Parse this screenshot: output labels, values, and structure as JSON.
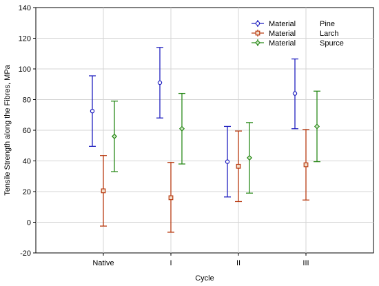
{
  "chart_data": {
    "type": "errorbar",
    "xlabel": "Cycle",
    "ylabel": "Tensile Strength along the Fibres, MPa",
    "categories": [
      "Native",
      "I",
      "II",
      "III"
    ],
    "ylim": [
      -20,
      140
    ],
    "yticks": [
      -20,
      0,
      20,
      40,
      60,
      80,
      100,
      120,
      140
    ],
    "grid": true,
    "legend_position": "top-right",
    "series": [
      {
        "legend_prefix": "Material",
        "name": "Pine",
        "color": "#1f1fbf",
        "marker": "circle",
        "mean": [
          72.5,
          91,
          39.5,
          84
        ],
        "lower": [
          49.5,
          68,
          16.5,
          61
        ],
        "upper": [
          95.5,
          114,
          62.5,
          106.5
        ]
      },
      {
        "legend_prefix": "Material",
        "name": "Larch",
        "color": "#b83a10",
        "marker": "square",
        "mean": [
          20.5,
          16,
          36.5,
          37.5
        ],
        "lower": [
          -2.5,
          -6.5,
          13.5,
          14.5
        ],
        "upper": [
          43.5,
          39,
          59.5,
          60.5
        ]
      },
      {
        "legend_prefix": "Material",
        "name": "Spurce",
        "color": "#2a8a1a",
        "marker": "diamond",
        "mean": [
          56,
          61,
          42,
          62.5
        ],
        "lower": [
          33,
          38,
          19,
          39.5
        ],
        "upper": [
          79,
          84,
          65,
          85.5
        ]
      }
    ]
  }
}
